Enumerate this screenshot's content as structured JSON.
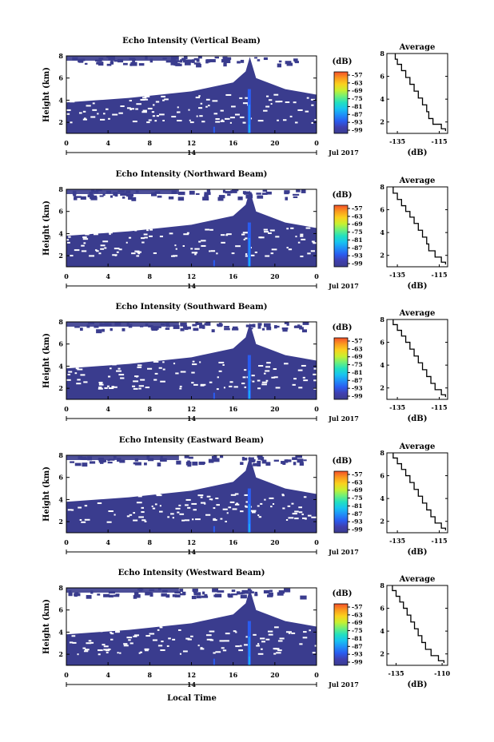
{
  "figure": {
    "xlabel_bottom": "Local Time",
    "colorbar_unit": "(dB)",
    "colorbar_ticks": [
      "-57",
      "-63",
      "-69",
      "-75",
      "-81",
      "-87",
      "-93",
      "-99"
    ],
    "colorbar_colors": [
      "#3a3c8e",
      "#3f3fb0",
      "#2a5cf0",
      "#1f8ff8",
      "#18c3f0",
      "#22e0c0",
      "#6ef07a",
      "#c8f030",
      "#fad21e",
      "#fa9a1e",
      "#f5502a"
    ],
    "date_label": "Jul 2017",
    "day_label": "14",
    "background_color": "#3a3c8e",
    "echo_color": "#1f8ff8"
  },
  "chart_data": [
    {
      "type": "heatmap",
      "title": "Echo Intensity (Vertical Beam)",
      "ylabel": "Height (km)",
      "x_ticks": [
        "0",
        "4",
        "8",
        "12",
        "16",
        "20",
        "0"
      ],
      "y_ticks": [
        "8",
        "6",
        "4",
        "2"
      ],
      "xlim": [
        0,
        24
      ],
      "ylim": [
        1,
        8
      ],
      "units": "dB",
      "colorbar_range": [
        -99,
        -57
      ],
      "avg": {
        "title": "Average",
        "xlabel": "(dB)",
        "x_ticks": [
          "-135",
          "-115"
        ],
        "y_ticks": [
          "8",
          "6",
          "4",
          "2"
        ],
        "xlim": [
          -140,
          -111
        ],
        "ylim": [
          1,
          8
        ],
        "profile": [
          [
            -112,
            1.2
          ],
          [
            -114,
            1.6
          ],
          [
            -118,
            2.0
          ],
          [
            -120,
            2.6
          ],
          [
            -121,
            3.2
          ],
          [
            -123,
            3.8
          ],
          [
            -125,
            4.4
          ],
          [
            -127,
            5.0
          ],
          [
            -129,
            5.6
          ],
          [
            -131,
            6.2
          ],
          [
            -133,
            6.8
          ],
          [
            -135,
            7.3
          ],
          [
            -136,
            7.7
          ],
          [
            -136,
            8.0
          ]
        ]
      }
    },
    {
      "type": "heatmap",
      "title": "Echo Intensity (Northward Beam)",
      "ylabel": "Height (km)",
      "x_ticks": [
        "0",
        "4",
        "8",
        "12",
        "16",
        "20",
        "0"
      ],
      "y_ticks": [
        "8",
        "6",
        "4",
        "2"
      ],
      "xlim": [
        0,
        24
      ],
      "ylim": [
        1,
        8
      ],
      "units": "dB",
      "colorbar_range": [
        -99,
        -57
      ],
      "avg": {
        "title": "Average",
        "xlabel": "(dB)",
        "x_ticks": [
          "-135",
          "-115"
        ],
        "y_ticks": [
          "8",
          "6",
          "4",
          "2"
        ],
        "xlim": [
          -140,
          -111
        ],
        "ylim": [
          1,
          8
        ],
        "profile": [
          [
            -112,
            1.2
          ],
          [
            -114,
            1.6
          ],
          [
            -117,
            2.1
          ],
          [
            -120,
            2.7
          ],
          [
            -121,
            3.3
          ],
          [
            -123,
            3.9
          ],
          [
            -125,
            4.5
          ],
          [
            -127,
            5.1
          ],
          [
            -129,
            5.6
          ],
          [
            -131,
            6.1
          ],
          [
            -133,
            6.6
          ],
          [
            -135,
            7.2
          ],
          [
            -137,
            7.7
          ],
          [
            -137,
            8.0
          ]
        ]
      }
    },
    {
      "type": "heatmap",
      "title": "Echo Intensity (Southward Beam)",
      "ylabel": "Height (km)",
      "x_ticks": [
        "0",
        "4",
        "8",
        "12",
        "16",
        "20",
        "0"
      ],
      "y_ticks": [
        "8",
        "6",
        "4",
        "2"
      ],
      "xlim": [
        0,
        24
      ],
      "ylim": [
        1,
        8
      ],
      "units": "dB",
      "colorbar_range": [
        -99,
        -57
      ],
      "avg": {
        "title": "Average",
        "xlabel": "(dB)",
        "x_ticks": [
          "-135",
          "-115"
        ],
        "y_ticks": [
          "8",
          "6",
          "4",
          "2"
        ],
        "xlim": [
          -140,
          -111
        ],
        "ylim": [
          1,
          8
        ],
        "profile": [
          [
            -112,
            1.2
          ],
          [
            -114,
            1.6
          ],
          [
            -117,
            2.1
          ],
          [
            -119,
            2.7
          ],
          [
            -121,
            3.3
          ],
          [
            -123,
            3.9
          ],
          [
            -125,
            4.5
          ],
          [
            -127,
            5.1
          ],
          [
            -129,
            5.7
          ],
          [
            -131,
            6.3
          ],
          [
            -133,
            6.8
          ],
          [
            -135,
            7.3
          ],
          [
            -137,
            7.8
          ],
          [
            -137,
            8.0
          ]
        ]
      }
    },
    {
      "type": "heatmap",
      "title": "Echo Intensity (Eastward Beam)",
      "ylabel": "Height (km)",
      "x_ticks": [
        "0",
        "4",
        "8",
        "12",
        "16",
        "20",
        "0"
      ],
      "y_ticks": [
        "8",
        "6",
        "4",
        "2"
      ],
      "xlim": [
        0,
        24
      ],
      "ylim": [
        1,
        8
      ],
      "units": "dB",
      "colorbar_range": [
        -99,
        -57
      ],
      "avg": {
        "title": "Average",
        "xlabel": "(dB)",
        "x_ticks": [
          "-135",
          "-115"
        ],
        "y_ticks": [
          "8",
          "6",
          "4",
          "2"
        ],
        "xlim": [
          -140,
          -111
        ],
        "ylim": [
          1,
          8
        ],
        "profile": [
          [
            -112,
            1.2
          ],
          [
            -114,
            1.6
          ],
          [
            -117,
            2.1
          ],
          [
            -119,
            2.7
          ],
          [
            -121,
            3.3
          ],
          [
            -123,
            3.9
          ],
          [
            -125,
            4.5
          ],
          [
            -127,
            5.1
          ],
          [
            -129,
            5.7
          ],
          [
            -131,
            6.3
          ],
          [
            -133,
            6.8
          ],
          [
            -135,
            7.3
          ],
          [
            -137,
            7.8
          ],
          [
            -137,
            8.0
          ]
        ]
      }
    },
    {
      "type": "heatmap",
      "title": "Echo Intensity (Westward Beam)",
      "ylabel": "Height (km)",
      "x_ticks": [
        "0",
        "4",
        "8",
        "12",
        "16",
        "20",
        "0"
      ],
      "y_ticks": [
        "8",
        "6",
        "4",
        "2"
      ],
      "xlim": [
        0,
        24
      ],
      "ylim": [
        1,
        8
      ],
      "units": "dB",
      "colorbar_range": [
        -99,
        -57
      ],
      "avg": {
        "title": "Average",
        "xlabel": "(dB)",
        "x_ticks": [
          "-135",
          "-110"
        ],
        "y_ticks": [
          "8",
          "6",
          "4",
          "2"
        ],
        "xlim": [
          -140,
          -107
        ],
        "ylim": [
          1,
          8
        ],
        "profile": [
          [
            -109,
            1.2
          ],
          [
            -112,
            1.6
          ],
          [
            -116,
            2.1
          ],
          [
            -119,
            2.7
          ],
          [
            -121,
            3.3
          ],
          [
            -123,
            3.9
          ],
          [
            -125,
            4.5
          ],
          [
            -127,
            5.1
          ],
          [
            -129,
            5.7
          ],
          [
            -131,
            6.3
          ],
          [
            -133,
            6.8
          ],
          [
            -135,
            7.3
          ],
          [
            -137,
            7.8
          ],
          [
            -137,
            8.0
          ]
        ]
      }
    }
  ]
}
